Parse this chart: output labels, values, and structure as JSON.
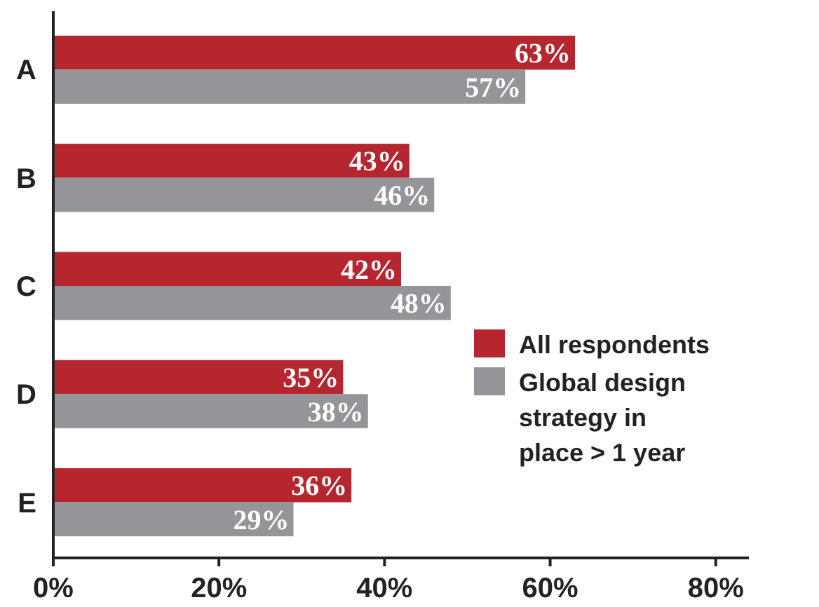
{
  "chart_data": {
    "type": "bar",
    "orientation": "horizontal",
    "categories": [
      "A",
      "B",
      "C",
      "D",
      "E"
    ],
    "series": [
      {
        "name": "All respondents",
        "color": "#b5262f",
        "values": [
          63,
          43,
          42,
          35,
          36
        ]
      },
      {
        "name": "Global design strategy in place > 1 year",
        "color": "#939598",
        "values": [
          57,
          46,
          48,
          38,
          29
        ]
      }
    ],
    "xlim": [
      0,
      84
    ],
    "xticks": [
      {
        "value": 0,
        "label": "0%"
      },
      {
        "value": 20,
        "label": "20%"
      },
      {
        "value": 40,
        "label": "40%"
      },
      {
        "value": 60,
        "label": "60%"
      },
      {
        "value": 80,
        "label": "80%"
      }
    ],
    "value_labels": [
      [
        "63%",
        "43%",
        "42%",
        "35%",
        "36%"
      ],
      [
        "57%",
        "46%",
        "48%",
        "38%",
        "29%"
      ]
    ],
    "legend": "right",
    "grid": false
  }
}
